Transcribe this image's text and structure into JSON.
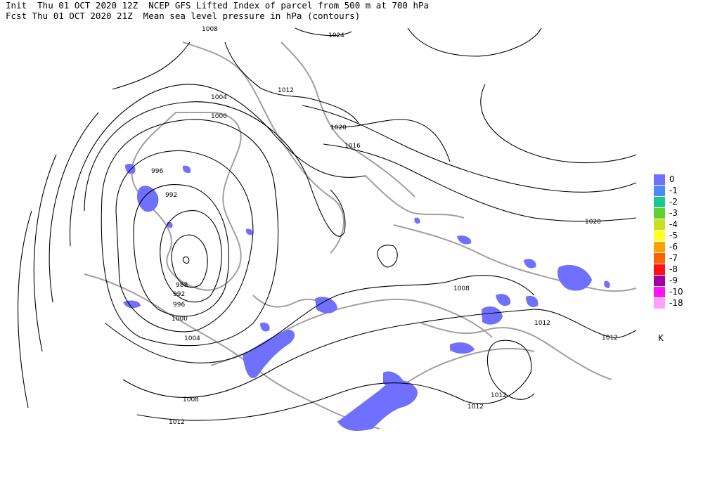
{
  "header": {
    "line1": "Init  Thu 01 OCT 2020 12Z  NCEP GFS Lifted Index of parcel from 500 m at 700 hPa",
    "line2": "Fcst Thu 01 OCT 2020 21Z  Mean sea level pressure in hPa (contours)"
  },
  "contour_labels": [
    "1008",
    "1024",
    "1004",
    "1012",
    "1000",
    "1020",
    "1016",
    "996",
    "992",
    "988",
    "992",
    "996",
    "1000",
    "1004",
    "1008",
    "1012",
    "1008",
    "1020",
    "1012",
    "1012",
    "1012",
    "1012"
  ],
  "legend": {
    "items": [
      {
        "label": "0",
        "color": "#7070ff"
      },
      {
        "label": "-1",
        "color": "#4a8aff"
      },
      {
        "label": "-2",
        "color": "#18c890"
      },
      {
        "label": "-3",
        "color": "#60d030"
      },
      {
        "label": "-4",
        "color": "#c8e020"
      },
      {
        "label": "-5",
        "color": "#ffff20"
      },
      {
        "label": "-6",
        "color": "#ffa000"
      },
      {
        "label": "-7",
        "color": "#ff6000"
      },
      {
        "label": "-8",
        "color": "#ff1010"
      },
      {
        "label": "-9",
        "color": "#a000a0"
      },
      {
        "label": "-10",
        "color": "#ff10ff"
      },
      {
        "label": "-18",
        "color": "#ffa0ff"
      }
    ],
    "unit": "K"
  },
  "colors": {
    "coast": "#a0a0a0",
    "contour": "#000000",
    "li_zero": "#7070ff"
  }
}
